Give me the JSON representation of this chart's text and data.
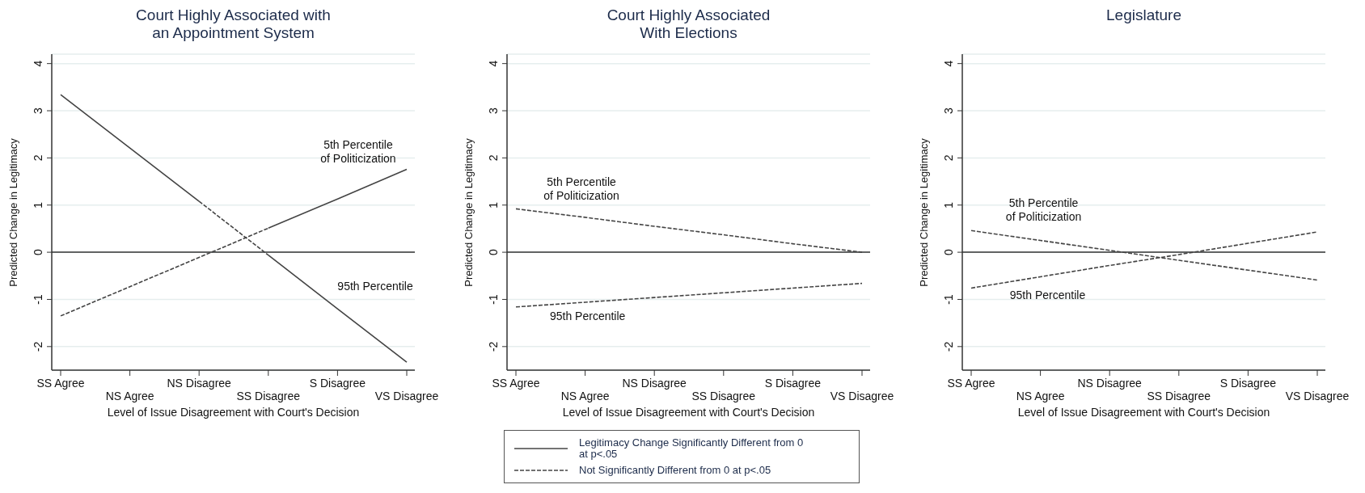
{
  "chart_data": [
    {
      "type": "line",
      "title": "Court Highly Associated with\nan Appointment System",
      "xlabel": "Level of Issue Disagreement with Court's Decision",
      "ylabel": "Predicted Change in Legitimacy",
      "categories": [
        "SS Agree",
        "NS Agree",
        "NS Disagree",
        "SS Disagree",
        "S Disagree",
        "VS Disagree"
      ],
      "ylim": [
        -2.5,
        4.2
      ],
      "yticks": [
        -2,
        -1,
        0,
        1,
        2,
        3,
        4
      ],
      "grid": "y",
      "ref_lines": [
        {
          "axis": "y",
          "value": 0,
          "color": "#333333"
        }
      ],
      "series": [
        {
          "color": "#444444",
          "line_style": "dashed",
          "values": [
            -1.35,
            -0.73,
            -0.11,
            0.51,
            null,
            null
          ]
        },
        {
          "color": "#444444",
          "line_style": "solid",
          "values": [
            null,
            null,
            null,
            0.51,
            1.13,
            1.76
          ]
        },
        {
          "color": "#444444",
          "line_style": "solid",
          "values": [
            3.34,
            2.21,
            1.08,
            null,
            null,
            null
          ]
        },
        {
          "color": "#444444",
          "line_style": "dashed",
          "values": [
            null,
            null,
            1.08,
            -0.06,
            null,
            null
          ]
        },
        {
          "color": "#444444",
          "line_style": "solid",
          "values": [
            null,
            null,
            null,
            -0.06,
            -1.2,
            -2.33
          ]
        }
      ],
      "annotations": [
        "5th Percentile\nof Politicization",
        "95th Percentile"
      ]
    },
    {
      "type": "line",
      "title": "Court Highly Associated\nWith Elections",
      "xlabel": "Level of Issue Disagreement with Court's Decision",
      "ylabel": "Predicted Change in Legitimacy",
      "categories": [
        "SS Agree",
        "NS Agree",
        "NS Disagree",
        "SS Disagree",
        "S Disagree",
        "VS Disagree"
      ],
      "ylim": [
        -2.5,
        4.2
      ],
      "yticks": [
        -2,
        -1,
        0,
        1,
        2,
        3,
        4
      ],
      "grid": "y",
      "ref_lines": [
        {
          "axis": "y",
          "value": 0,
          "color": "#333333"
        }
      ],
      "series": [
        {
          "color": "#444444",
          "line_style": "dashed",
          "values": [
            0.92,
            0.74,
            0.55,
            0.37,
            0.18,
            0.0
          ]
        },
        {
          "color": "#444444",
          "line_style": "dashed",
          "values": [
            -1.16,
            -1.06,
            -0.96,
            -0.86,
            -0.76,
            -0.66
          ]
        }
      ],
      "annotations": [
        "5th Percentile\nof Politicization",
        "95th Percentile",
        "Legitimacy Change Significantly Different from 0 at p<.05",
        "Not Significantly Different from 0 at p<.05"
      ]
    },
    {
      "type": "line",
      "title": "Legislature",
      "xlabel": "Level of Issue Disagreement with Court's Decision",
      "ylabel": "Predicted Change in Legitimacy",
      "categories": [
        "SS Agree",
        "NS Agree",
        "NS Disagree",
        "SS Disagree",
        "S Disagree",
        "VS Disagree"
      ],
      "ylim": [
        -2.5,
        4.2
      ],
      "yticks": [
        -2,
        -1,
        0,
        1,
        2,
        3,
        4
      ],
      "grid": "y",
      "ref_lines": [
        {
          "axis": "y",
          "value": 0,
          "color": "#333333"
        }
      ],
      "series": [
        {
          "color": "#444444",
          "line_style": "dashed",
          "values": [
            0.46,
            0.25,
            0.04,
            -0.17,
            -0.38,
            -0.59
          ]
        },
        {
          "color": "#444444",
          "line_style": "dashed",
          "values": [
            -0.76,
            -0.52,
            -0.28,
            -0.05,
            0.19,
            0.43
          ]
        }
      ],
      "annotations": [
        "5th Percentile\nof Politicization",
        "95th Percentile"
      ]
    }
  ]
}
